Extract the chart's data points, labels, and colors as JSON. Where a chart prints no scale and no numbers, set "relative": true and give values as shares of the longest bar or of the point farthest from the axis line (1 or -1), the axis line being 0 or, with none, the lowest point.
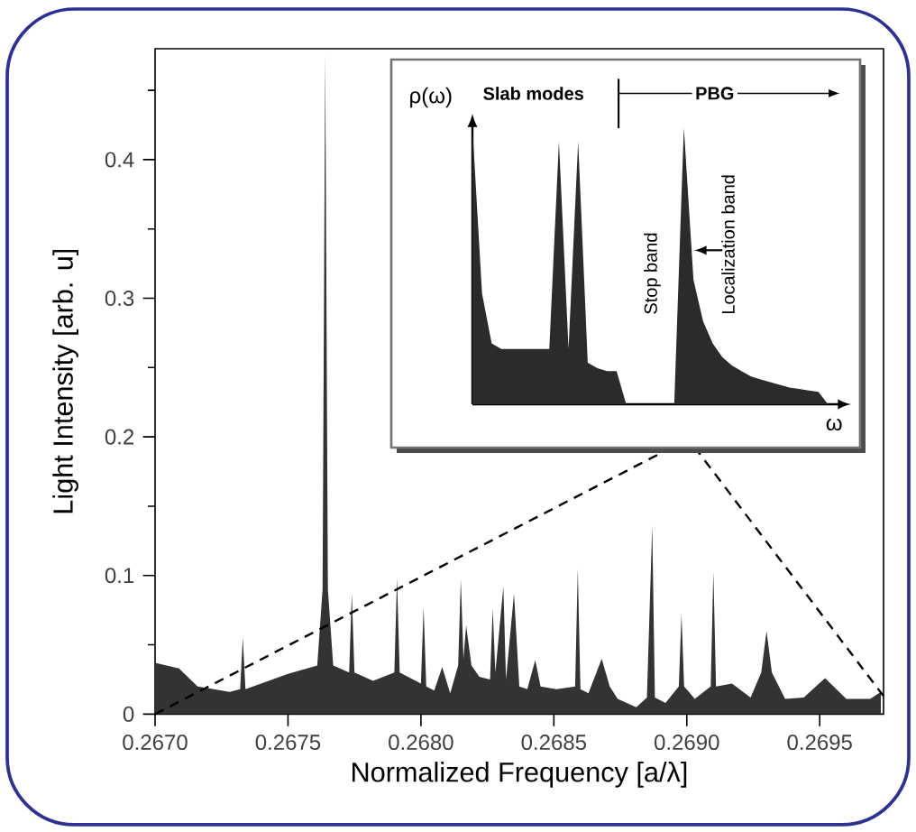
{
  "chart_data": [
    {
      "type": "area",
      "xlabel": "Normalized Frequency [a/λ]",
      "ylabel": "Light Intensity [arb. u]",
      "color": "#333333",
      "series": [
        {
          "type": "line",
          "line_style": "dashed",
          "color": "#000000",
          "x": [
            0.267,
            0.26892
          ],
          "values": [
            0,
            0.19
          ]
        },
        {
          "type": "line",
          "line_style": "dashed",
          "color": "#000000",
          "x": [
            0.26974,
            0.26904
          ],
          "values": [
            0.013,
            0.19
          ]
        }
      ],
      "xlim": [
        0.267,
        0.26974
      ],
      "ylim": [
        0,
        0.48
      ],
      "xticks": [
        {
          "value": 0.267,
          "label": "0.2670"
        },
        {
          "value": 0.2675,
          "label": "0.2675"
        },
        {
          "value": 0.268,
          "label": "0.2680"
        },
        {
          "value": 0.2685,
          "label": "0.2685"
        },
        {
          "value": 0.269,
          "label": "0.2690"
        },
        {
          "value": 0.2695,
          "label": "0.2695"
        }
      ],
      "yticks": [
        0,
        {
          "value": 0.05,
          "label": null
        },
        0.1,
        {
          "value": 0.15,
          "label": null
        },
        0.2,
        {
          "value": 0.25,
          "label": null
        },
        0.3,
        {
          "value": 0.35,
          "label": null
        },
        0.4,
        {
          "value": 0.45,
          "label": null
        }
      ],
      "x": [
        0.267,
        0.26709,
        0.26716,
        0.26728,
        0.26732,
        0.26733,
        0.26734,
        0.2675,
        0.26761,
        0.26763,
        0.26764,
        0.26765,
        0.26767,
        0.26773,
        0.26774,
        0.26775,
        0.26782,
        0.2679,
        0.26791,
        0.26792,
        0.268,
        0.26801,
        0.26802,
        0.26805,
        0.26808,
        0.26811,
        0.26814,
        0.26815,
        0.26816,
        0.26817,
        0.26819,
        0.26822,
        0.26826,
        0.26827,
        0.26828,
        0.26831,
        0.26832,
        0.26835,
        0.26837,
        0.2684,
        0.26843,
        0.26845,
        0.26851,
        0.26858,
        0.26859,
        0.2686,
        0.26863,
        0.26868,
        0.26871,
        0.26874,
        0.26881,
        0.26885,
        0.26887,
        0.26888,
        0.26892,
        0.26897,
        0.26898,
        0.26899,
        0.26903,
        0.26909,
        0.2691,
        0.26911,
        0.26917,
        0.26924,
        0.26928,
        0.2693,
        0.26932,
        0.26937,
        0.26944,
        0.26952,
        0.2696,
        0.26969,
        0.26973
      ],
      "values": [
        0.037,
        0.033,
        0.02,
        0.016,
        0.018,
        0.055,
        0.018,
        0.029,
        0.035,
        0.09,
        0.475,
        0.09,
        0.035,
        0.03,
        0.087,
        0.03,
        0.024,
        0.03,
        0.098,
        0.03,
        0.022,
        0.077,
        0.02,
        0.017,
        0.034,
        0.015,
        0.035,
        0.097,
        0.04,
        0.064,
        0.035,
        0.027,
        0.025,
        0.076,
        0.03,
        0.092,
        0.025,
        0.087,
        0.02,
        0.018,
        0.039,
        0.02,
        0.018,
        0.02,
        0.105,
        0.018,
        0.015,
        0.04,
        0.02,
        0.011,
        0.005,
        0.012,
        0.136,
        0.012,
        0.008,
        0.02,
        0.072,
        0.02,
        0.011,
        0.02,
        0.103,
        0.02,
        0.022,
        0.012,
        0.03,
        0.06,
        0.03,
        0.011,
        0.012,
        0.026,
        0.011,
        0.011,
        0.016
      ]
    },
    {
      "type": "area",
      "relative": true,
      "xlabel": "ω",
      "ylabel": "ρ(ω)",
      "color": "#2b2b2b",
      "annotations": [
        "Slab modes",
        "PBG",
        "Stop band",
        "Localization band"
      ],
      "categories": [
        null,
        null,
        null,
        null,
        null,
        null,
        null,
        null,
        null,
        null,
        null,
        null,
        null,
        null,
        null,
        null,
        null,
        null,
        null,
        null,
        null,
        null,
        null,
        null,
        null,
        null,
        null,
        null,
        null,
        null,
        null,
        null,
        null,
        null,
        null,
        null,
        null,
        null,
        null,
        null
      ],
      "values": [
        1.0,
        0.4,
        0.22,
        0.2,
        0.2,
        0.2,
        0.2,
        0.2,
        0.2,
        0.95,
        0.2,
        0.95,
        0.15,
        0.13,
        0.12,
        0.12,
        0,
        0,
        0,
        0,
        0,
        0,
        1.0,
        0.45,
        0.3,
        0.22,
        0.17,
        0.14,
        0.12,
        0.1,
        0.09,
        0.08,
        0.07,
        0.06,
        0.055,
        0.05,
        0.045,
        0,
        0,
        0
      ]
    }
  ]
}
